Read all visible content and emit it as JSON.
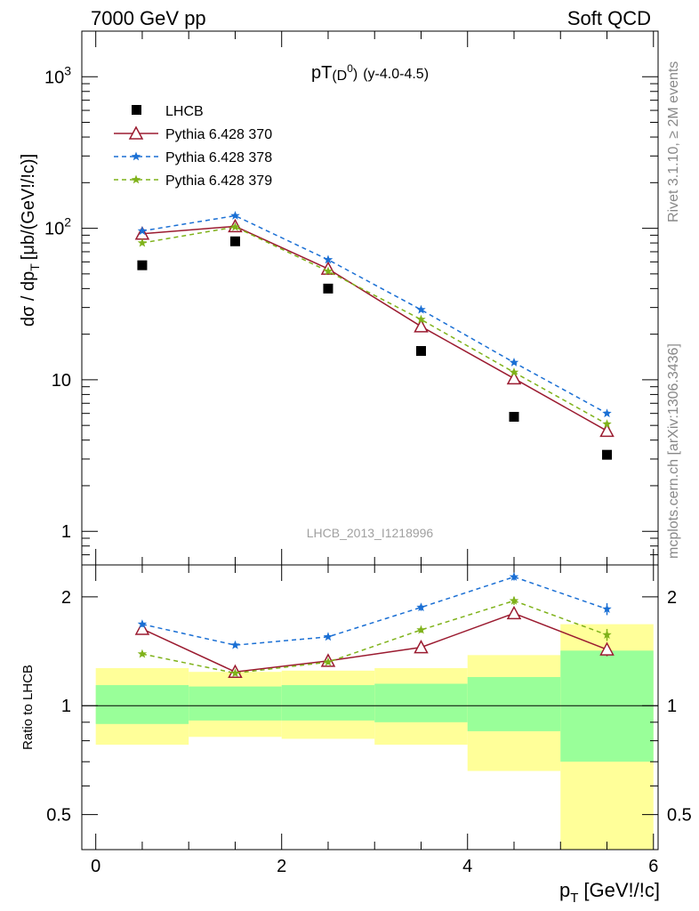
{
  "header": {
    "left": "7000 GeV pp",
    "right": "Soft QCD"
  },
  "side_labels": {
    "rivet": "Rivet 3.1.10, ≥ 2M events",
    "source": "mcplots.cern.ch [arXiv:1306.3436]"
  },
  "chart_data": [
    {
      "type": "line",
      "title_main": "pT",
      "title_sub": "(D",
      "title_sup": "0",
      "title_sub_end": ")",
      "title_rest": "(y-4.0-4.5)",
      "ylabel_main": "dσ / dp",
      "ylabel_sub": "T",
      "ylabel_unit": "[μb/(GeV!/!c)]",
      "watermark": "LHCB_2013_I1218996",
      "yscale": "log",
      "xlim": [
        -0.15,
        6.05
      ],
      "ylim": [
        0.6,
        2000
      ],
      "yticks": [
        {
          "value": 1,
          "label": "1",
          "exp": ""
        },
        {
          "value": 10,
          "label": "10",
          "exp": ""
        },
        {
          "value": 100,
          "label": "10",
          "exp": "2"
        },
        {
          "value": 1000,
          "label": "10",
          "exp": "3"
        }
      ],
      "legend_position": "top-left",
      "x": [
        0.5,
        1.5,
        2.5,
        3.5,
        4.5,
        5.5
      ],
      "series": [
        {
          "name": "LHCB",
          "color": "#000000",
          "marker": "square",
          "line": "none",
          "values": [
            57,
            82,
            40,
            15.5,
            5.7,
            3.2
          ]
        },
        {
          "name": "Pythia 6.428 370",
          "color": "#9b1b30",
          "marker": "triangle",
          "line": "solid",
          "values": [
            92,
            103,
            54,
            22.5,
            10.2,
            4.6
          ]
        },
        {
          "name": "Pythia 6.428 378",
          "color": "#1a6fd4",
          "marker": "star",
          "line": "dashed",
          "values": [
            96,
            121,
            62,
            29,
            13,
            6
          ]
        },
        {
          "name": "Pythia 6.428 379",
          "color": "#7fb21a",
          "marker": "star",
          "line": "dashed",
          "values": [
            80,
            102,
            52,
            25,
            11.2,
            5.1
          ]
        }
      ]
    },
    {
      "type": "line",
      "ylabel": "Ratio to LHCB",
      "xlabel_main": "p",
      "xlabel_sub": "T",
      "xlabel_unit": "[GeV!/!c]",
      "yscale": "log",
      "xlim": [
        -0.15,
        6.05
      ],
      "ylim": [
        0.4,
        2.45
      ],
      "yticks": [
        {
          "value": 0.5,
          "label": "0.5"
        },
        {
          "value": 1,
          "label": "1"
        },
        {
          "value": 2,
          "label": "2"
        }
      ],
      "xticks": [
        {
          "value": 0,
          "label": "0"
        },
        {
          "value": 2,
          "label": "2"
        },
        {
          "value": 4,
          "label": "4"
        },
        {
          "value": 6,
          "label": "6"
        }
      ],
      "bands": [
        {
          "x0": 0,
          "x1": 1,
          "yellow": [
            0.78,
            1.27
          ],
          "green": [
            0.89,
            1.14
          ]
        },
        {
          "x0": 1,
          "x1": 2,
          "yellow": [
            0.82,
            1.24
          ],
          "green": [
            0.91,
            1.13
          ]
        },
        {
          "x0": 2,
          "x1": 3,
          "yellow": [
            0.81,
            1.25
          ],
          "green": [
            0.91,
            1.14
          ]
        },
        {
          "x0": 3,
          "x1": 4,
          "yellow": [
            0.78,
            1.27
          ],
          "green": [
            0.9,
            1.15
          ]
        },
        {
          "x0": 4,
          "x1": 5,
          "yellow": [
            0.66,
            1.38
          ],
          "green": [
            0.85,
            1.2
          ]
        },
        {
          "x0": 5,
          "x1": 6,
          "yellow": [
            0.38,
            1.68
          ],
          "green": [
            0.7,
            1.42
          ]
        }
      ],
      "x": [
        0.5,
        1.5,
        2.5,
        3.5,
        4.5,
        5.5
      ],
      "series": [
        {
          "name": "Pythia 6.428 370",
          "color": "#9b1b30",
          "marker": "triangle",
          "line": "solid",
          "values": [
            1.63,
            1.24,
            1.33,
            1.45,
            1.8,
            1.43
          ],
          "errors": [
            0.03,
            0.02,
            0.02,
            0.03,
            0.05,
            0.06
          ]
        },
        {
          "name": "Pythia 6.428 378",
          "color": "#1a6fd4",
          "marker": "star",
          "line": "dashed",
          "values": [
            1.68,
            1.47,
            1.55,
            1.87,
            2.27,
            1.85
          ],
          "errors": [
            0.03,
            0.02,
            0.02,
            0.04,
            0.05,
            0.07
          ]
        },
        {
          "name": "Pythia 6.428 379",
          "color": "#7fb21a",
          "marker": "star",
          "line": "dashed",
          "values": [
            1.39,
            1.23,
            1.32,
            1.62,
            1.95,
            1.57
          ],
          "errors": [
            0.02,
            0.02,
            0.02,
            0.03,
            0.05,
            0.06
          ]
        }
      ]
    }
  ]
}
